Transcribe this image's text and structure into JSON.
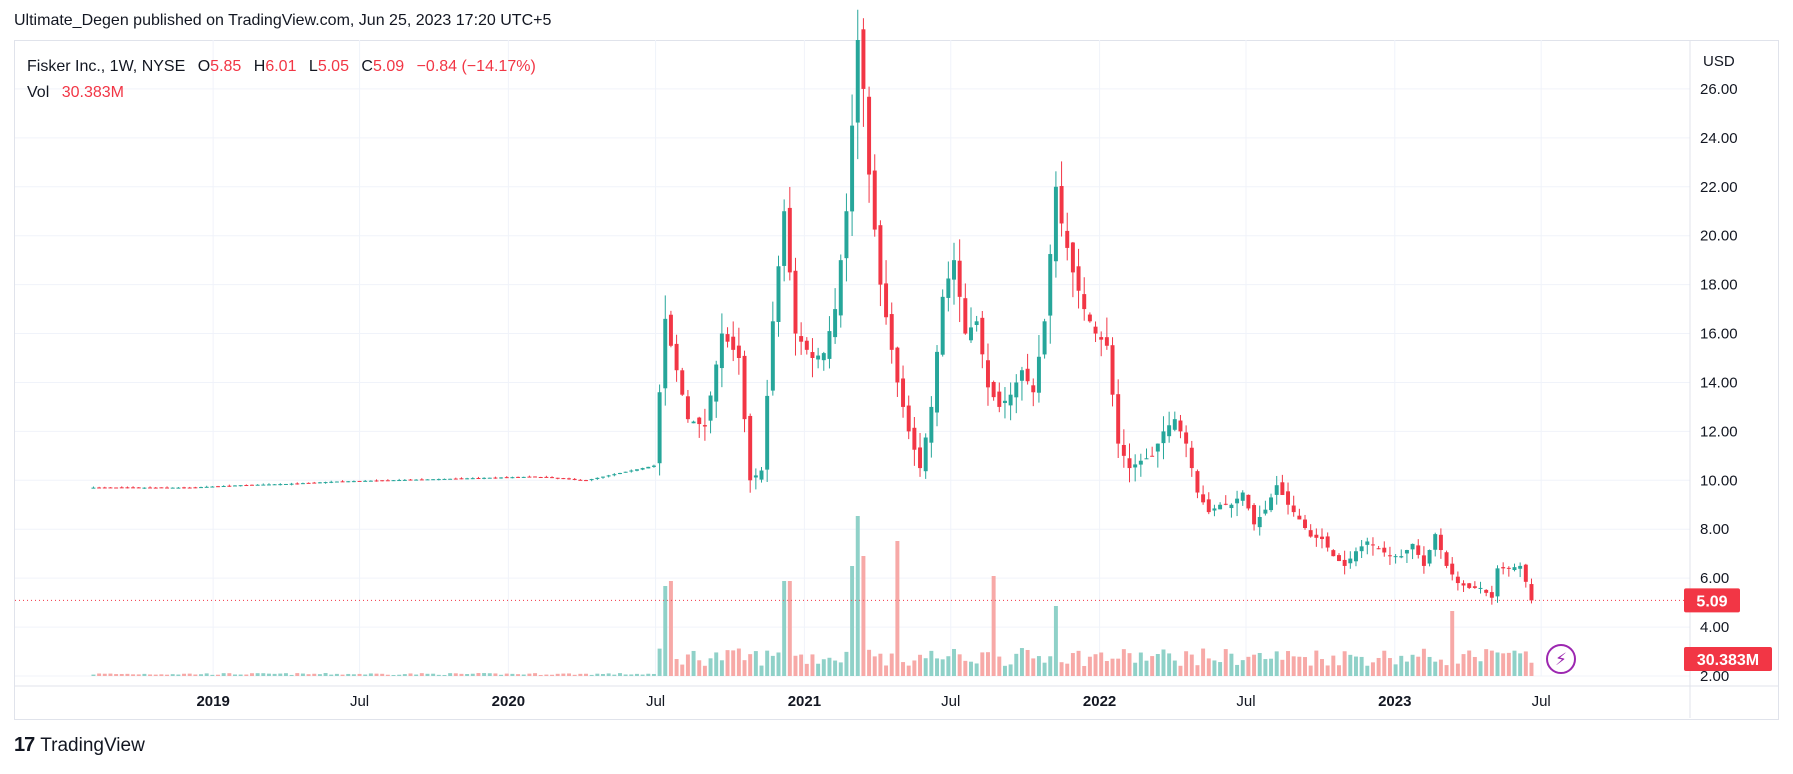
{
  "header": {
    "published_line": "Ultimate_Degen published on TradingView.com, Jun 25, 2023 17:20 UTC+5"
  },
  "legend": {
    "symbol": "Fisker Inc., 1W, NYSE",
    "open_label": "O",
    "open": "5.85",
    "high_label": "H",
    "high": "6.01",
    "low_label": "L",
    "low": "5.05",
    "close_label": "C",
    "close": "5.09",
    "change": "−0.84 (−14.17%)",
    "vol_label": "Vol",
    "vol": "30.383M"
  },
  "footer": {
    "brand": "TradingView",
    "logo_glyph": "17"
  },
  "colors": {
    "up": "#26a69a",
    "down": "#f23645",
    "vol_up": "#8fd1c8",
    "vol_down": "#f7a9a7",
    "price_tag": "#f23645",
    "lightning": "#9c27b0"
  },
  "chart_data": {
    "type": "candlestick",
    "currency": "USD",
    "ylim": [
      2,
      28
    ],
    "y_ticks": [
      "26.00",
      "24.00",
      "22.00",
      "20.00",
      "18.00",
      "16.00",
      "14.00",
      "12.00",
      "10.00",
      "8.00",
      "6.00",
      "4.00",
      "2.00"
    ],
    "y_tick_values": [
      26,
      24,
      22,
      20,
      18,
      16,
      14,
      12,
      10,
      8,
      6,
      4,
      2
    ],
    "x_ticks": [
      {
        "label": "2019",
        "date": "2019-01-01",
        "bold": true
      },
      {
        "label": "Jul",
        "date": "2019-07-01",
        "bold": false
      },
      {
        "label": "2020",
        "date": "2020-01-01",
        "bold": true
      },
      {
        "label": "Jul",
        "date": "2020-07-01",
        "bold": false
      },
      {
        "label": "2021",
        "date": "2021-01-01",
        "bold": true
      },
      {
        "label": "Jul",
        "date": "2021-07-01",
        "bold": false
      },
      {
        "label": "2022",
        "date": "2022-01-01",
        "bold": true
      },
      {
        "label": "Jul",
        "date": "2022-07-01",
        "bold": false
      },
      {
        "label": "2023",
        "date": "2023-01-01",
        "bold": true
      },
      {
        "label": "Jul",
        "date": "2023-07-01",
        "bold": false
      }
    ],
    "xlim": [
      "2018-05-01",
      "2024-01-01"
    ],
    "last_price": "5.09",
    "last_volume": "30.383M",
    "close_series": [
      [
        "2018-08-06",
        9.7
      ],
      [
        "2018-10-01",
        9.7
      ],
      [
        "2018-12-03",
        9.7
      ],
      [
        "2019-02-04",
        9.8
      ],
      [
        "2019-04-01",
        9.85
      ],
      [
        "2019-06-03",
        9.95
      ],
      [
        "2019-08-05",
        10.0
      ],
      [
        "2019-10-07",
        10.05
      ],
      [
        "2019-12-02",
        10.1
      ],
      [
        "2020-02-03",
        10.15
      ],
      [
        "2020-04-06",
        10.0
      ],
      [
        "2020-06-01",
        10.4
      ],
      [
        "2020-06-29",
        10.6
      ],
      [
        "2020-07-13",
        16.6
      ],
      [
        "2020-07-20",
        15.5
      ],
      [
        "2020-08-10",
        12.5
      ],
      [
        "2020-08-31",
        12.2
      ],
      [
        "2020-09-21",
        16.0
      ],
      [
        "2020-10-12",
        15.0
      ],
      [
        "2020-10-26",
        10.0
      ],
      [
        "2020-11-09",
        10.4
      ],
      [
        "2020-11-23",
        16.5
      ],
      [
        "2020-12-07",
        21.0
      ],
      [
        "2020-12-21",
        16.0
      ],
      [
        "2021-01-11",
        15.0
      ],
      [
        "2021-01-25",
        15.2
      ],
      [
        "2021-02-08",
        17.0
      ],
      [
        "2021-02-22",
        21.0
      ],
      [
        "2021-03-08",
        28.0
      ],
      [
        "2021-03-15",
        26.0
      ],
      [
        "2021-03-22",
        22.5
      ],
      [
        "2021-04-05",
        18.0
      ],
      [
        "2021-04-26",
        14.0
      ],
      [
        "2021-05-10",
        12.0
      ],
      [
        "2021-05-24",
        10.5
      ],
      [
        "2021-06-07",
        13.0
      ],
      [
        "2021-06-21",
        17.5
      ],
      [
        "2021-07-05",
        19.0
      ],
      [
        "2021-07-19",
        16.0
      ],
      [
        "2021-08-02",
        16.5
      ],
      [
        "2021-08-16",
        13.8
      ],
      [
        "2021-08-30",
        13.0
      ],
      [
        "2021-09-13",
        13.5
      ],
      [
        "2021-09-27",
        14.5
      ],
      [
        "2021-10-11",
        13.6
      ],
      [
        "2021-10-25",
        16.5
      ],
      [
        "2021-11-08",
        22.0
      ],
      [
        "2021-11-15",
        20.5
      ],
      [
        "2021-11-29",
        18.5
      ],
      [
        "2021-12-13",
        17.0
      ],
      [
        "2021-12-27",
        16.0
      ],
      [
        "2022-01-10",
        15.5
      ],
      [
        "2022-01-24",
        11.5
      ],
      [
        "2022-02-07",
        10.5
      ],
      [
        "2022-02-21",
        10.8
      ],
      [
        "2022-03-07",
        11.0
      ],
      [
        "2022-03-21",
        12.0
      ],
      [
        "2022-04-04",
        12.5
      ],
      [
        "2022-04-18",
        11.5
      ],
      [
        "2022-05-02",
        9.5
      ],
      [
        "2022-05-16",
        8.7
      ],
      [
        "2022-05-30",
        9.0
      ],
      [
        "2022-06-13",
        9.0
      ],
      [
        "2022-06-27",
        9.5
      ],
      [
        "2022-07-11",
        8.2
      ],
      [
        "2022-07-25",
        8.8
      ],
      [
        "2022-08-08",
        9.8
      ],
      [
        "2022-08-22",
        9.0
      ],
      [
        "2022-09-05",
        8.4
      ],
      [
        "2022-09-19",
        7.7
      ],
      [
        "2022-10-03",
        7.6
      ],
      [
        "2022-10-17",
        6.9
      ],
      [
        "2022-10-31",
        6.5
      ],
      [
        "2022-11-14",
        7.1
      ],
      [
        "2022-11-28",
        7.5
      ],
      [
        "2022-12-12",
        7.2
      ],
      [
        "2022-12-26",
        6.9
      ],
      [
        "2023-01-09",
        6.9
      ],
      [
        "2023-01-23",
        7.4
      ],
      [
        "2023-02-06",
        6.5
      ],
      [
        "2023-02-20",
        7.8
      ],
      [
        "2023-03-06",
        6.5
      ],
      [
        "2023-03-20",
        5.8
      ],
      [
        "2023-04-03",
        5.6
      ],
      [
        "2023-04-17",
        5.6
      ],
      [
        "2023-05-01",
        5.2
      ],
      [
        "2023-05-08",
        6.4
      ],
      [
        "2023-05-22",
        6.4
      ],
      [
        "2023-06-05",
        6.5
      ],
      [
        "2023-06-12",
        5.85
      ],
      [
        "2023-06-19",
        5.09
      ]
    ],
    "volume_peaks_M": [
      [
        "2020-07-13",
        90
      ],
      [
        "2020-07-20",
        95
      ],
      [
        "2020-12-07",
        95
      ],
      [
        "2020-12-14",
        95
      ],
      [
        "2021-03-01",
        110
      ],
      [
        "2021-03-08",
        160
      ],
      [
        "2021-03-15",
        120
      ],
      [
        "2021-04-26",
        135
      ],
      [
        "2021-08-23",
        100
      ],
      [
        "2021-11-08",
        70
      ],
      [
        "2023-03-13",
        65
      ]
    ]
  }
}
